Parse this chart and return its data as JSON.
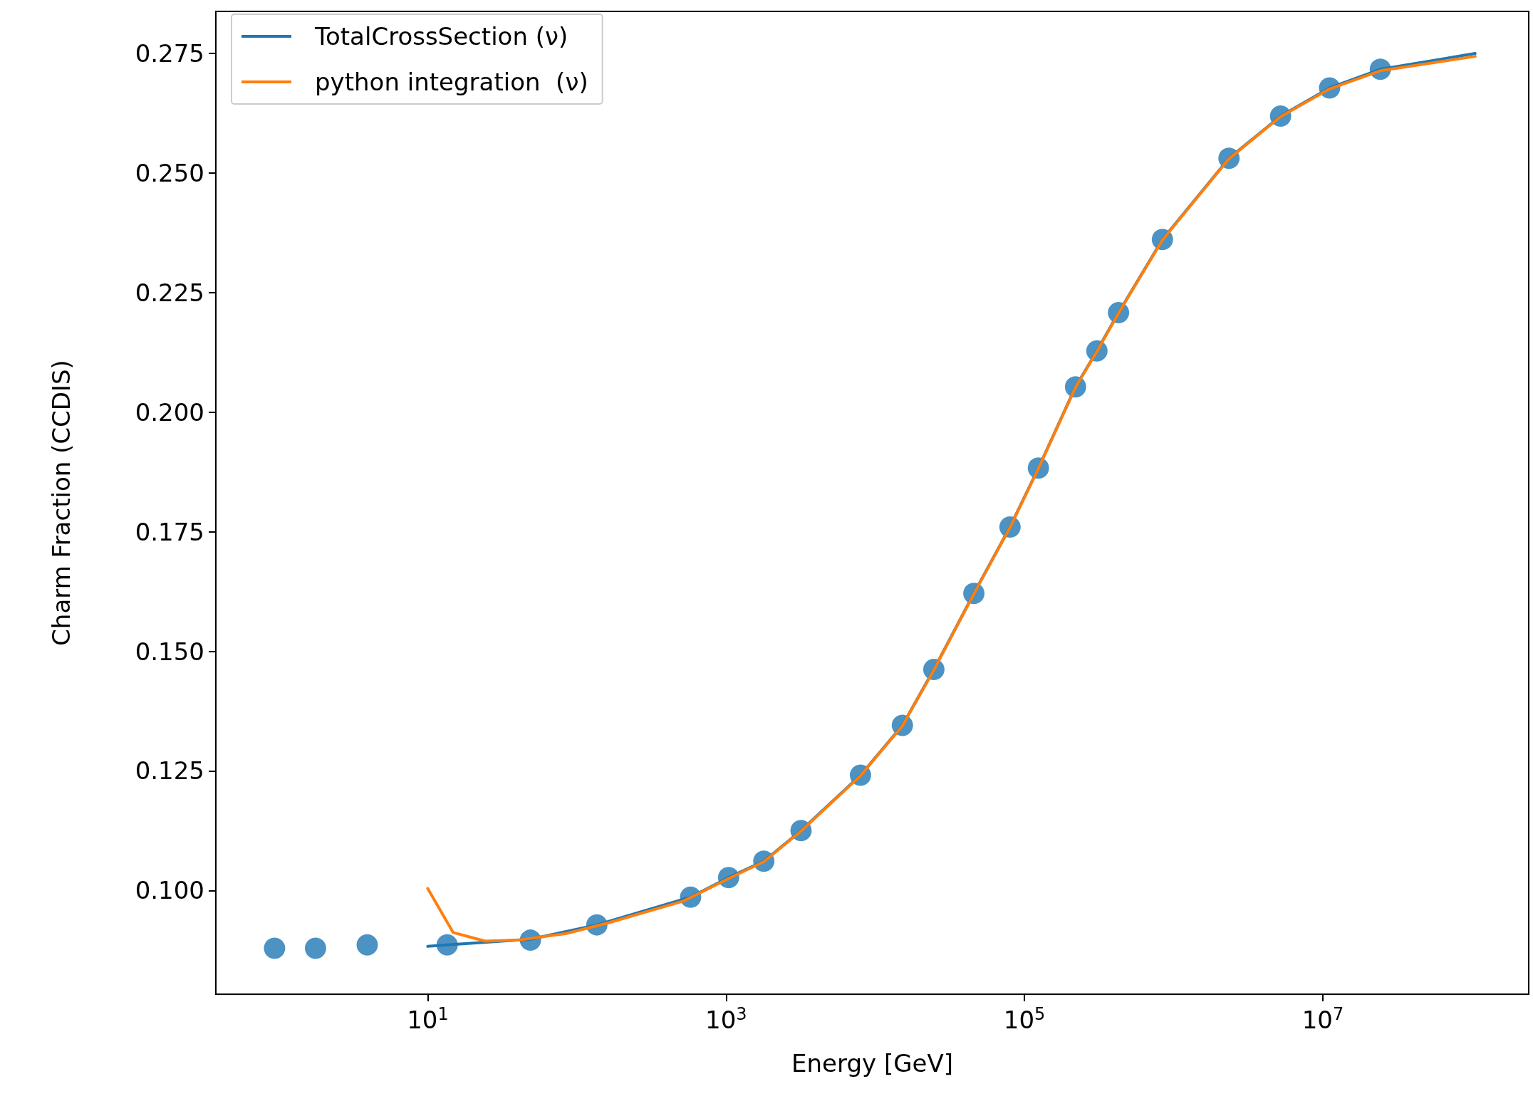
{
  "chart_data": {
    "type": "line",
    "xlabel": "Energy [GeV]",
    "ylabel": "Charm Fraction (CCDIS)",
    "log": "x",
    "grid": false,
    "legend": "top left",
    "marker": "none",
    "line_style": "solid",
    "xlim": [
      0.38,
      240000000
    ],
    "xticks": [
      {
        "value": 10,
        "label": "10$^{1}$"
      },
      {
        "value": 1000,
        "label": "10$^{3}$"
      },
      {
        "value": 100000,
        "label": "10$^{5}$"
      },
      {
        "value": 10000000,
        "label": "10$^{7}$"
      }
    ],
    "ylim": [
      0.0783,
      0.2838
    ],
    "yticks": [
      {
        "value": 0.1,
        "label": "0.100"
      },
      {
        "value": 0.125,
        "label": "0.125"
      },
      {
        "value": 0.15,
        "label": "0.150"
      },
      {
        "value": 0.175,
        "label": "0.175"
      },
      {
        "value": 0.2,
        "label": "0.200"
      },
      {
        "value": 0.225,
        "label": "0.225"
      },
      {
        "value": 0.25,
        "label": "0.250"
      },
      {
        "value": 0.275,
        "label": "0.275"
      }
    ],
    "series": [
      {
        "name": "TotalCrossSection (ν)",
        "color": "#1f77b4",
        "x": [
          10,
          13.5,
          48.8,
          136,
          578,
          1040,
          1790,
          3180,
          7960,
          15200,
          24700,
          45800,
          80000,
          124000,
          220000,
          306000,
          427000,
          841000,
          2350000,
          5210000,
          11100000,
          24300000,
          105000000
        ],
        "values": [
          0.0883,
          0.0886,
          0.0898,
          0.0928,
          0.0986,
          0.1027,
          0.1061,
          0.1125,
          0.1241,
          0.1345,
          0.1462,
          0.1621,
          0.176,
          0.1883,
          0.2053,
          0.2128,
          0.2208,
          0.2361,
          0.2531,
          0.2619,
          0.2678,
          0.2717,
          0.275
        ]
      },
      {
        "name": "python integration  (ν)",
        "color": "#ff7f0e",
        "x": [
          10,
          14.8,
          24.3,
          40,
          85,
          166,
          520,
          1040,
          1790,
          3180,
          7960,
          15200,
          24700,
          45800,
          80000,
          124000,
          220000,
          306000,
          427000,
          841000,
          2350000,
          5210000,
          11100000,
          24300000,
          105000000
        ],
        "values": [
          0.1004,
          0.0912,
          0.0894,
          0.0896,
          0.091,
          0.0933,
          0.0978,
          0.1025,
          0.106,
          0.1124,
          0.124,
          0.1344,
          0.1461,
          0.162,
          0.1759,
          0.1882,
          0.2052,
          0.2127,
          0.2207,
          0.236,
          0.253,
          0.2618,
          0.2676,
          0.2714,
          0.2744
        ]
      },
      {
        "type": "scatter",
        "marker": "circle",
        "color": "#1f77b4",
        "x": [
          0.94,
          1.77,
          3.93,
          13.5,
          48.8,
          136,
          578,
          1040,
          1790,
          3180,
          7960,
          15200,
          24700,
          45800,
          80000,
          124000,
          220000,
          306000,
          427000,
          841000,
          2350000,
          5210000,
          11100000,
          24300000
        ],
        "values": [
          0.0879,
          0.0879,
          0.0886,
          0.0886,
          0.0896,
          0.0928,
          0.0986,
          0.1027,
          0.1061,
          0.1125,
          0.1241,
          0.1345,
          0.1462,
          0.1621,
          0.176,
          0.1883,
          0.2053,
          0.2128,
          0.2208,
          0.2361,
          0.2531,
          0.2619,
          0.2678,
          0.2717
        ]
      }
    ]
  }
}
